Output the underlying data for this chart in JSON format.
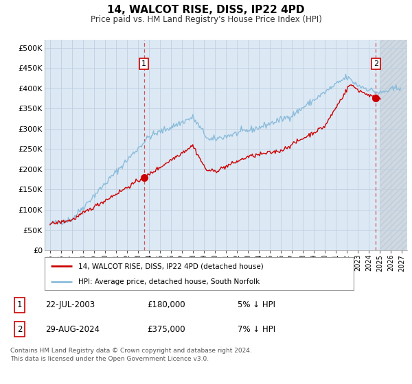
{
  "title": "14, WALCOT RISE, DISS, IP22 4PD",
  "subtitle": "Price paid vs. HM Land Registry's House Price Index (HPI)",
  "plot_bg_color": "#dce9f5",
  "hpi_color": "#8bbcda",
  "price_color": "#cc0000",
  "marker_color": "#cc0000",
  "grid_color": "#c0cfe0",
  "annotation1_price": 180000,
  "annotation1_year": 2003.55,
  "annotation2_price": 375000,
  "annotation2_year": 2024.66,
  "vline_color": "#cc4444",
  "legend_label1": "14, WALCOT RISE, DISS, IP22 4PD (detached house)",
  "legend_label2": "HPI: Average price, detached house, South Norfolk",
  "note_line1": "Contains HM Land Registry data © Crown copyright and database right 2024.",
  "note_line2": "This data is licensed under the Open Government Licence v3.0.",
  "table_row1_date": "22-JUL-2003",
  "table_row1_price": "£180,000",
  "table_row1_hpi": "5% ↓ HPI",
  "table_row2_date": "29-AUG-2024",
  "table_row2_price": "£375,000",
  "table_row2_hpi": "7% ↓ HPI",
  "xmin": 1994.5,
  "xmax": 2027.5,
  "ymin": 0,
  "ymax": 520000,
  "future_start": 2025.0,
  "yticks": [
    0,
    50000,
    100000,
    150000,
    200000,
    250000,
    300000,
    350000,
    400000,
    450000,
    500000
  ],
  "ytick_labels": [
    "£0",
    "£50K",
    "£100K",
    "£150K",
    "£200K",
    "£250K",
    "£300K",
    "£350K",
    "£400K",
    "£450K",
    "£500K"
  ]
}
